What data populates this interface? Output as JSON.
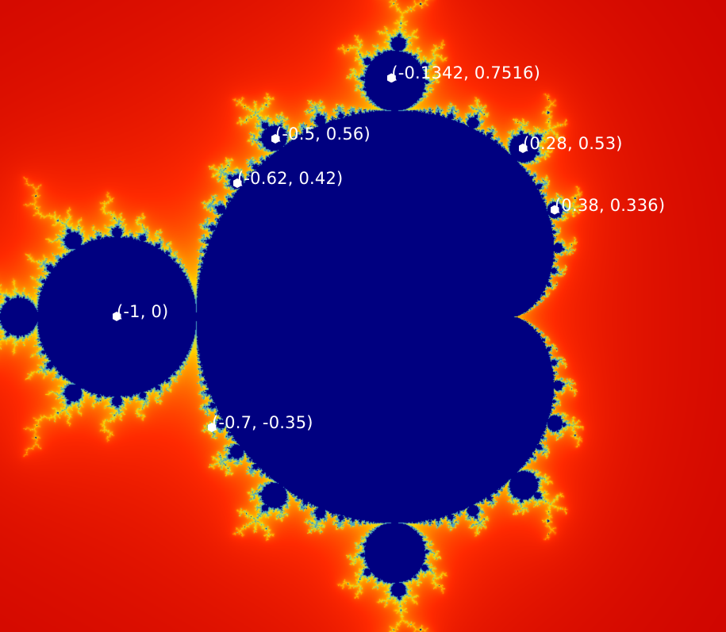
{
  "view": {
    "title": "",
    "set_color": "#000080",
    "escape_gradient": [
      "#8a0000",
      "#c80000",
      "#ff2a00",
      "#ff8c00",
      "#ffd400",
      "#b6e05a",
      "#4aa0c0"
    ],
    "marker_color": "#ffffff",
    "re_range": [
      -2.0,
      0.6
    ],
    "im_range": [
      -1.13,
      1.13
    ]
  },
  "points": [
    {
      "re": -0.1342,
      "im": 0.7516,
      "label": "(-0.1342, 0.7516)"
    },
    {
      "re": -0.5,
      "im": 0.56,
      "label": "(-0.5, 0.56)"
    },
    {
      "re": 0.28,
      "im": 0.53,
      "label": "(0.28, 0.53)"
    },
    {
      "re": -0.62,
      "im": 0.42,
      "label": "(-0.62, 0.42)"
    },
    {
      "re": 0.38,
      "im": 0.336,
      "label": "(0.38, 0.336)"
    },
    {
      "re": -1,
      "im": 0,
      "label": "(-1, 0)"
    },
    {
      "re": -0.7,
      "im": -0.35,
      "label": "(-0.7, -0.35)"
    }
  ]
}
